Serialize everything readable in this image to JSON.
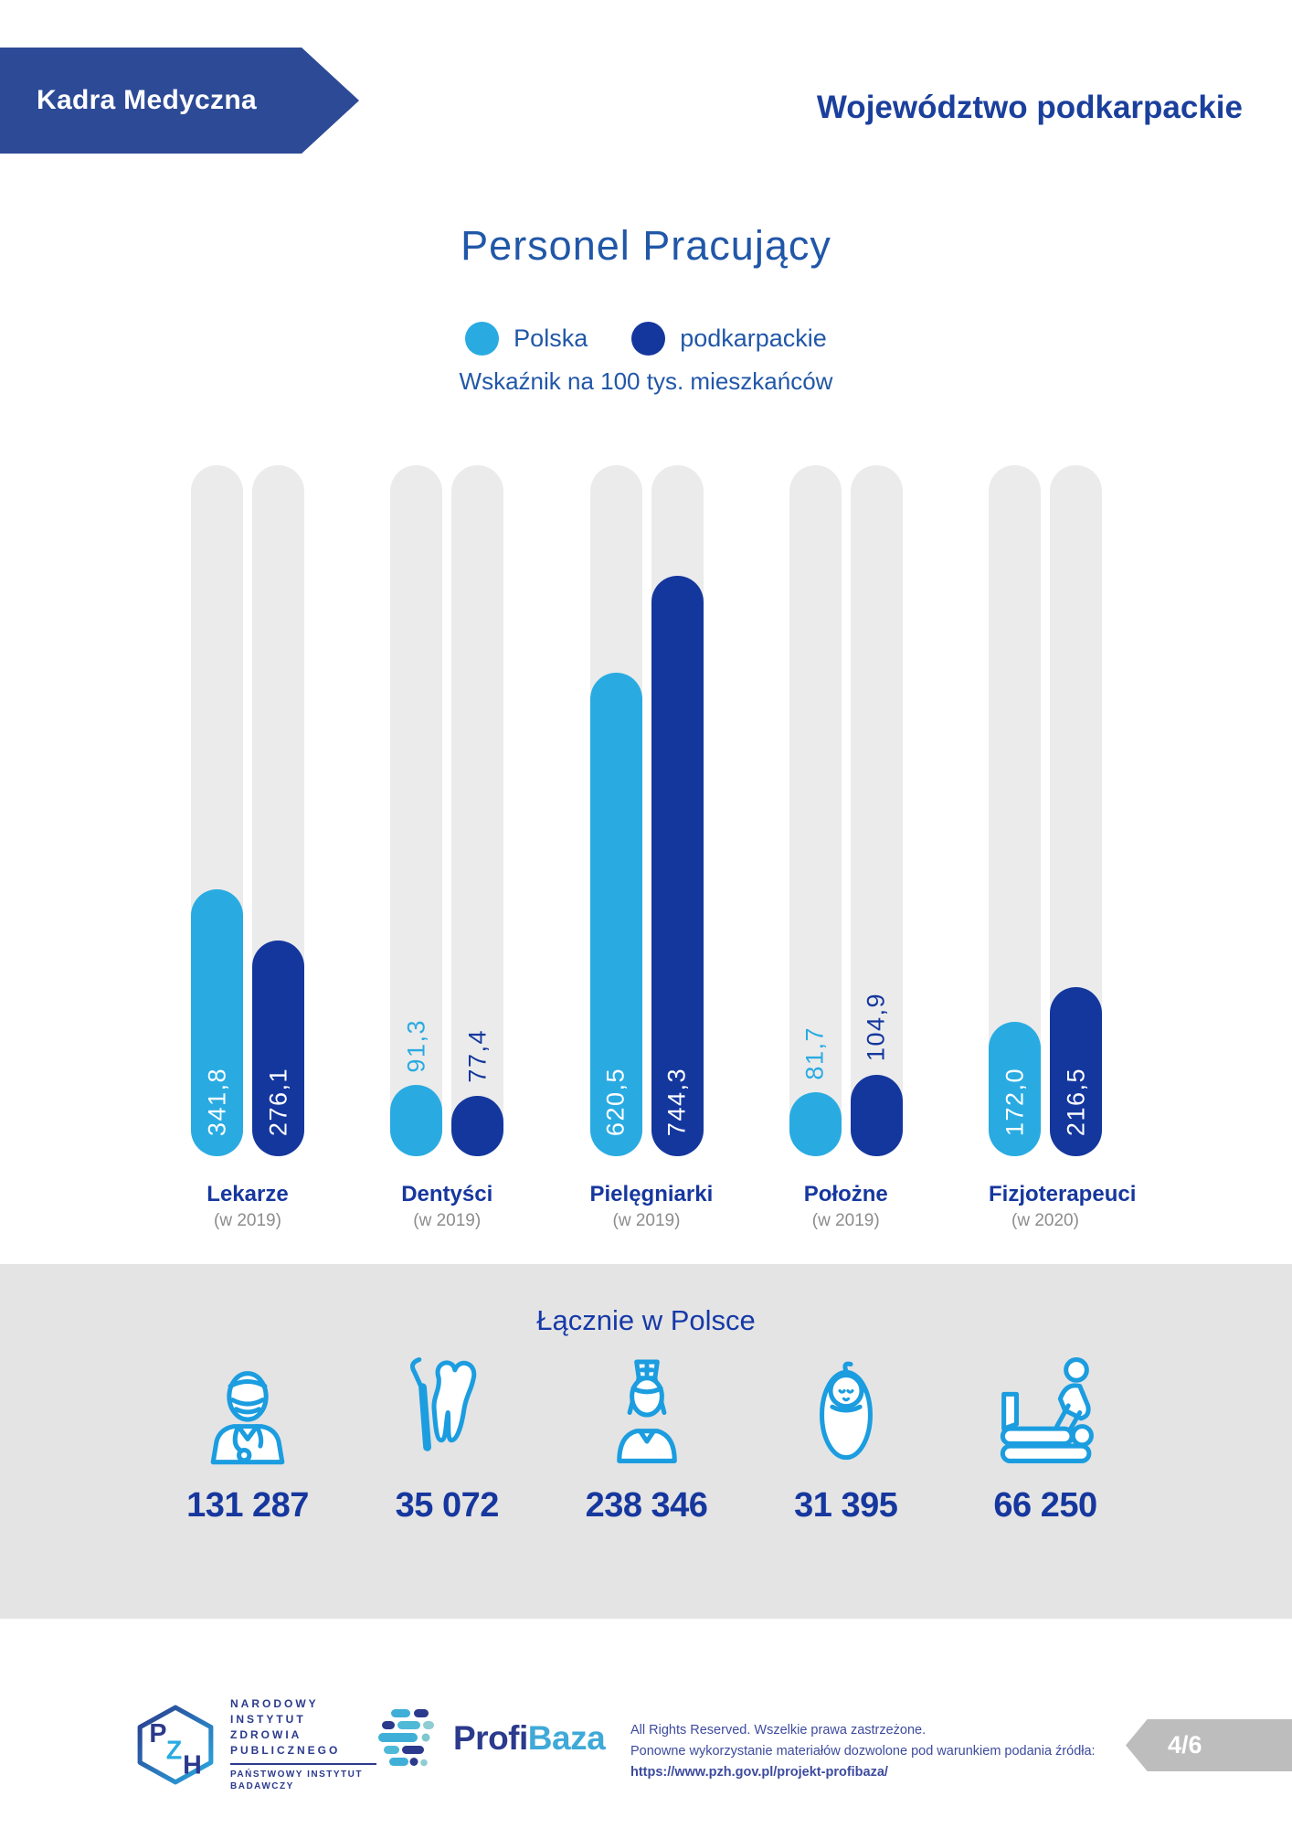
{
  "header": {
    "banner_label": "Kadra Medyczna",
    "region_title": "Województwo podkarpackie"
  },
  "chart_data": {
    "type": "bar",
    "title": "Personel Pracujący",
    "subtitle": "Wskaźnik na 100 tys. mieszkańców",
    "legend_position": "top-center",
    "grid": false,
    "ylim": [
      0,
      886
    ],
    "categories": [
      "Lekarze",
      "Dentyści",
      "Pielęgniarki",
      "Położne",
      "Fizjoterapeuci"
    ],
    "category_years": [
      "(w 2019)",
      "(w 2019)",
      "(w 2019)",
      "(w 2019)",
      "(w 2020)"
    ],
    "legend": [
      {
        "name": "Polska",
        "color": "#29ABE2"
      },
      {
        "name": "podkarpackie",
        "color": "#14379E"
      }
    ],
    "series": [
      {
        "name": "Polska",
        "color": "#29ABE2",
        "values": [
          341.8,
          91.3,
          620.5,
          81.7,
          172.0
        ],
        "labels": [
          "341,8",
          "91,3",
          "620,5",
          "81,7",
          "172,0"
        ]
      },
      {
        "name": "podkarpackie",
        "color": "#14379E",
        "values": [
          276.1,
          77.4,
          744.3,
          104.9,
          216.5
        ],
        "labels": [
          "276,1",
          "77,4",
          "744,3",
          "104,9",
          "216,5"
        ]
      }
    ]
  },
  "totals": {
    "heading": "Łącznie w Polsce",
    "items": [
      {
        "icon": "doctor-icon",
        "value": "131 287"
      },
      {
        "icon": "tooth-icon",
        "value": "35 072"
      },
      {
        "icon": "nurse-icon",
        "value": "238 346"
      },
      {
        "icon": "baby-icon",
        "value": "31 395"
      },
      {
        "icon": "physiotherapist-icon",
        "value": "66 250"
      }
    ]
  },
  "footer": {
    "pzh": {
      "letters": [
        "P",
        "Z",
        "H"
      ],
      "lines": [
        "NARODOWY",
        "INSTYTUT",
        "ZDROWIA",
        "PUBLICZNEGO"
      ],
      "sub_lines": [
        "PAŃSTWOWY INSTYTUT",
        "BADAWCZY"
      ]
    },
    "profibaza": {
      "part1": "Profi",
      "part2": "Baza"
    },
    "rights_line1": "All Rights Reserved. Wszelkie prawa zastrzeżone.",
    "rights_line2": "Ponowne wykorzystanie materiałów dozwolone pod warunkiem podania źródła:",
    "rights_link": "https://www.pzh.gov.pl/projekt-profibaza/",
    "page_badge": "4/6"
  },
  "colors": {
    "polska": "#29ABE2",
    "podkarpackie": "#14379E",
    "banner": "#2D4A96",
    "title_text": "#2157A8",
    "category_text": "#16379E",
    "year_text": "#8C8C8C",
    "track": "#EBEBEB",
    "band": "#E4E4E4",
    "icon": "#1B9DE0",
    "footer_text": "#3D4B9E",
    "badge": "#BDBDBD",
    "profi_navy": "#2B3A8C",
    "baza_blue": "#3FA9D8"
  }
}
